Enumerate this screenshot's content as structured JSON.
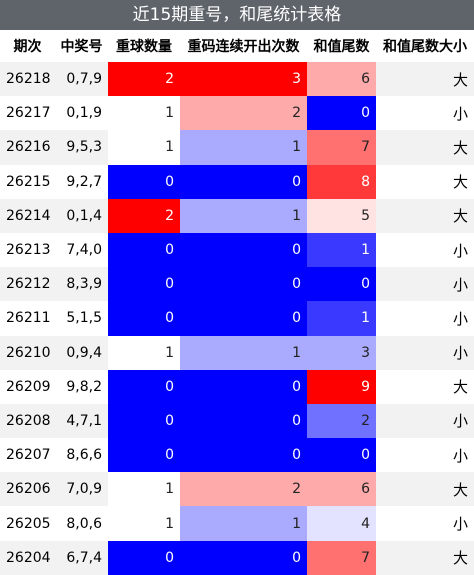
{
  "title": "近15期重号，和尾统计表格",
  "table": {
    "header": [
      "期次",
      "中奖号",
      "重球数量",
      "重码连续开出次数",
      "和值尾数",
      "和值尾数大小"
    ],
    "heatmap_columns": [
      2,
      3,
      4
    ],
    "rows": [
      [
        26218,
        "0,7,9",
        2,
        3,
        6,
        "大"
      ],
      [
        26217,
        "0,1,9",
        1,
        2,
        0,
        "小"
      ],
      [
        26216,
        "9,5,3",
        1,
        1,
        7,
        "大"
      ],
      [
        26215,
        "9,2,7",
        0,
        0,
        8,
        "大"
      ],
      [
        26214,
        "0,1,4",
        2,
        1,
        5,
        "大"
      ],
      [
        26213,
        "7,4,0",
        0,
        0,
        1,
        "小"
      ],
      [
        26212,
        "8,3,9",
        0,
        0,
        0,
        "小"
      ],
      [
        26211,
        "5,1,5",
        0,
        0,
        1,
        "小"
      ],
      [
        26210,
        "0,9,4",
        1,
        1,
        3,
        "小"
      ],
      [
        26209,
        "9,8,2",
        0,
        0,
        9,
        "大"
      ],
      [
        26208,
        "4,7,1",
        0,
        0,
        2,
        "小"
      ],
      [
        26207,
        "8,6,6",
        0,
        0,
        0,
        "小"
      ],
      [
        26206,
        "7,0,9",
        1,
        2,
        6,
        "大"
      ],
      [
        26205,
        "8,0,6",
        1,
        1,
        4,
        "小"
      ],
      [
        26204,
        "6,7,4",
        0,
        0,
        7,
        "大"
      ]
    ]
  }
}
